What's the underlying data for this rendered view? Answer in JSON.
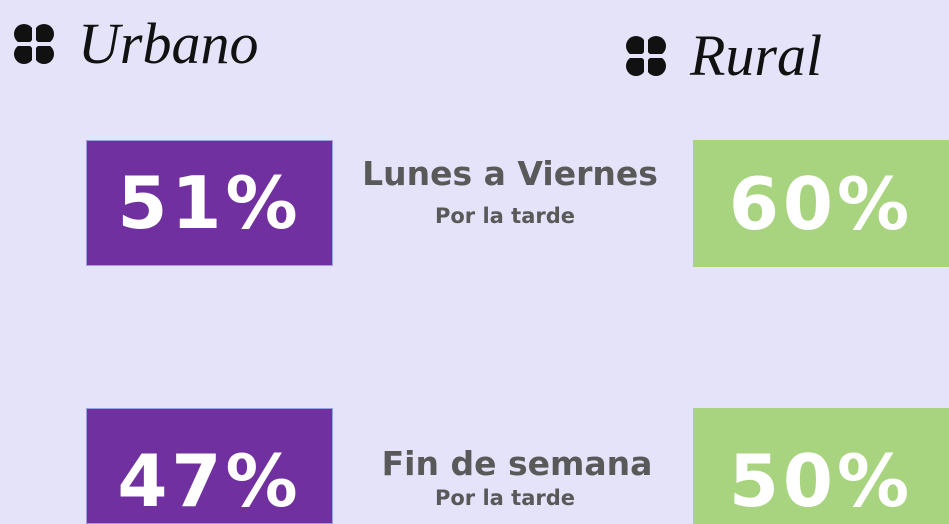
{
  "urbano": {
    "title": "Urbano"
  },
  "rural": {
    "title": "Rural"
  },
  "rows": [
    {
      "label": "Lunes a Viernes",
      "sublabel": "Por la tarde",
      "urbano": "51%",
      "rural": "60%"
    },
    {
      "label": "Fin de semana",
      "sublabel": "Por la tarde",
      "urbano": "47%",
      "rural": "50%"
    }
  ]
}
